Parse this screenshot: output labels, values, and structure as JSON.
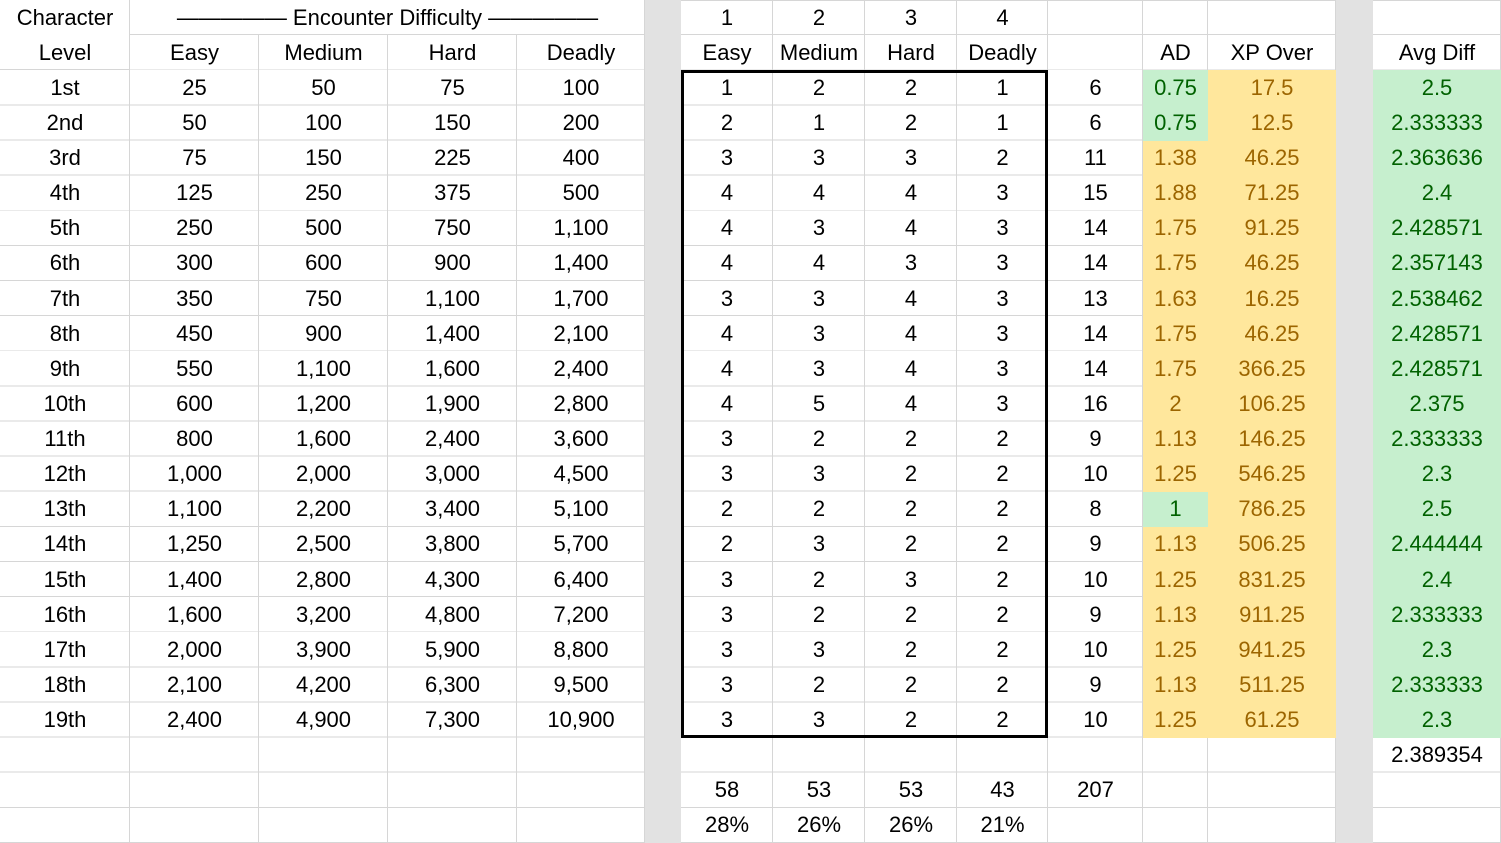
{
  "colors": {
    "good_bg": "#c6efce",
    "good_text": "#006100",
    "neutral_bg": "#ffe79c",
    "neutral_text": "#9c6500",
    "separator_gray": "#e2e2e2",
    "gridline": "#d6d6d6",
    "block_border": "#000000"
  },
  "left_table": {
    "corner_title_line1": "Character",
    "corner_title_line2": "Level",
    "banner": "————— Encounter Difficulty —————",
    "columns": [
      "Easy",
      "Medium",
      "Hard",
      "Deadly"
    ],
    "rows": [
      {
        "level": "1st",
        "easy": "25",
        "medium": "50",
        "hard": "75",
        "deadly": "100"
      },
      {
        "level": "2nd",
        "easy": "50",
        "medium": "100",
        "hard": "150",
        "deadly": "200"
      },
      {
        "level": "3rd",
        "easy": "75",
        "medium": "150",
        "hard": "225",
        "deadly": "400"
      },
      {
        "level": "4th",
        "easy": "125",
        "medium": "250",
        "hard": "375",
        "deadly": "500"
      },
      {
        "level": "5th",
        "easy": "250",
        "medium": "500",
        "hard": "750",
        "deadly": "1,100"
      },
      {
        "level": "6th",
        "easy": "300",
        "medium": "600",
        "hard": "900",
        "deadly": "1,400"
      },
      {
        "level": "7th",
        "easy": "350",
        "medium": "750",
        "hard": "1,100",
        "deadly": "1,700"
      },
      {
        "level": "8th",
        "easy": "450",
        "medium": "900",
        "hard": "1,400",
        "deadly": "2,100"
      },
      {
        "level": "9th",
        "easy": "550",
        "medium": "1,100",
        "hard": "1,600",
        "deadly": "2,400"
      },
      {
        "level": "10th",
        "easy": "600",
        "medium": "1,200",
        "hard": "1,900",
        "deadly": "2,800"
      },
      {
        "level": "11th",
        "easy": "800",
        "medium": "1,600",
        "hard": "2,400",
        "deadly": "3,600"
      },
      {
        "level": "12th",
        "easy": "1,000",
        "medium": "2,000",
        "hard": "3,000",
        "deadly": "4,500"
      },
      {
        "level": "13th",
        "easy": "1,100",
        "medium": "2,200",
        "hard": "3,400",
        "deadly": "5,100"
      },
      {
        "level": "14th",
        "easy": "1,250",
        "medium": "2,500",
        "hard": "3,800",
        "deadly": "5,700"
      },
      {
        "level": "15th",
        "easy": "1,400",
        "medium": "2,800",
        "hard": "4,300",
        "deadly": "6,400"
      },
      {
        "level": "16th",
        "easy": "1,600",
        "medium": "3,200",
        "hard": "4,800",
        "deadly": "7,200"
      },
      {
        "level": "17th",
        "easy": "2,000",
        "medium": "3,900",
        "hard": "5,900",
        "deadly": "8,800"
      },
      {
        "level": "18th",
        "easy": "2,100",
        "medium": "4,200",
        "hard": "6,300",
        "deadly": "9,500"
      },
      {
        "level": "19th",
        "easy": "2,400",
        "medium": "4,900",
        "hard": "7,300",
        "deadly": "10,900"
      }
    ]
  },
  "middle_table": {
    "index_headers": [
      "1",
      "2",
      "3",
      "4"
    ],
    "columns": [
      "Easy",
      "Medium",
      "Hard",
      "Deadly"
    ],
    "rows": [
      {
        "counts": [
          "1",
          "2",
          "2",
          "1"
        ],
        "sum": "6"
      },
      {
        "counts": [
          "2",
          "1",
          "2",
          "1"
        ],
        "sum": "6"
      },
      {
        "counts": [
          "3",
          "3",
          "3",
          "2"
        ],
        "sum": "11"
      },
      {
        "counts": [
          "4",
          "4",
          "4",
          "3"
        ],
        "sum": "15"
      },
      {
        "counts": [
          "4",
          "3",
          "4",
          "3"
        ],
        "sum": "14"
      },
      {
        "counts": [
          "4",
          "4",
          "3",
          "3"
        ],
        "sum": "14"
      },
      {
        "counts": [
          "3",
          "3",
          "4",
          "3"
        ],
        "sum": "13"
      },
      {
        "counts": [
          "4",
          "3",
          "4",
          "3"
        ],
        "sum": "14"
      },
      {
        "counts": [
          "4",
          "3",
          "4",
          "3"
        ],
        "sum": "14"
      },
      {
        "counts": [
          "4",
          "5",
          "4",
          "3"
        ],
        "sum": "16"
      },
      {
        "counts": [
          "3",
          "2",
          "2",
          "2"
        ],
        "sum": "9"
      },
      {
        "counts": [
          "3",
          "3",
          "2",
          "2"
        ],
        "sum": "10"
      },
      {
        "counts": [
          "2",
          "2",
          "2",
          "2"
        ],
        "sum": "8"
      },
      {
        "counts": [
          "2",
          "3",
          "2",
          "2"
        ],
        "sum": "9"
      },
      {
        "counts": [
          "3",
          "2",
          "3",
          "2"
        ],
        "sum": "10"
      },
      {
        "counts": [
          "3",
          "2",
          "2",
          "2"
        ],
        "sum": "9"
      },
      {
        "counts": [
          "3",
          "3",
          "2",
          "2"
        ],
        "sum": "10"
      },
      {
        "counts": [
          "3",
          "2",
          "2",
          "2"
        ],
        "sum": "9"
      },
      {
        "counts": [
          "3",
          "3",
          "2",
          "2"
        ],
        "sum": "10"
      }
    ],
    "totals": [
      "58",
      "53",
      "53",
      "43"
    ],
    "totals_sum": "207",
    "percents": [
      "28%",
      "26%",
      "26%",
      "21%"
    ]
  },
  "stats": {
    "ad_header": "AD",
    "xp_over_header": "XP Over",
    "rows": [
      {
        "ad": "0.75",
        "ad_style": "good",
        "xp_over": "17.5"
      },
      {
        "ad": "0.75",
        "ad_style": "good",
        "xp_over": "12.5"
      },
      {
        "ad": "1.38",
        "ad_style": "neutral",
        "xp_over": "46.25"
      },
      {
        "ad": "1.88",
        "ad_style": "neutral",
        "xp_over": "71.25"
      },
      {
        "ad": "1.75",
        "ad_style": "neutral",
        "xp_over": "91.25"
      },
      {
        "ad": "1.75",
        "ad_style": "neutral",
        "xp_over": "46.25"
      },
      {
        "ad": "1.63",
        "ad_style": "neutral",
        "xp_over": "16.25"
      },
      {
        "ad": "1.75",
        "ad_style": "neutral",
        "xp_over": "46.25"
      },
      {
        "ad": "1.75",
        "ad_style": "neutral",
        "xp_over": "366.25"
      },
      {
        "ad": "2",
        "ad_style": "neutral",
        "xp_over": "106.25"
      },
      {
        "ad": "1.13",
        "ad_style": "neutral",
        "xp_over": "146.25"
      },
      {
        "ad": "1.25",
        "ad_style": "neutral",
        "xp_over": "546.25"
      },
      {
        "ad": "1",
        "ad_style": "good",
        "xp_over": "786.25"
      },
      {
        "ad": "1.13",
        "ad_style": "neutral",
        "xp_over": "506.25"
      },
      {
        "ad": "1.25",
        "ad_style": "neutral",
        "xp_over": "831.25"
      },
      {
        "ad": "1.13",
        "ad_style": "neutral",
        "xp_over": "911.25"
      },
      {
        "ad": "1.25",
        "ad_style": "neutral",
        "xp_over": "941.25"
      },
      {
        "ad": "1.13",
        "ad_style": "neutral",
        "xp_over": "511.25"
      },
      {
        "ad": "1.25",
        "ad_style": "neutral",
        "xp_over": "61.25"
      }
    ]
  },
  "avg_diff": {
    "header": "Avg Diff",
    "values": [
      "2.5",
      "2.333333",
      "2.363636",
      "2.4",
      "2.428571",
      "2.357143",
      "2.538462",
      "2.428571",
      "2.428571",
      "2.375",
      "2.333333",
      "2.3",
      "2.5",
      "2.444444",
      "2.4",
      "2.333333",
      "2.3",
      "2.333333",
      "2.3"
    ],
    "overall": "2.389354"
  }
}
